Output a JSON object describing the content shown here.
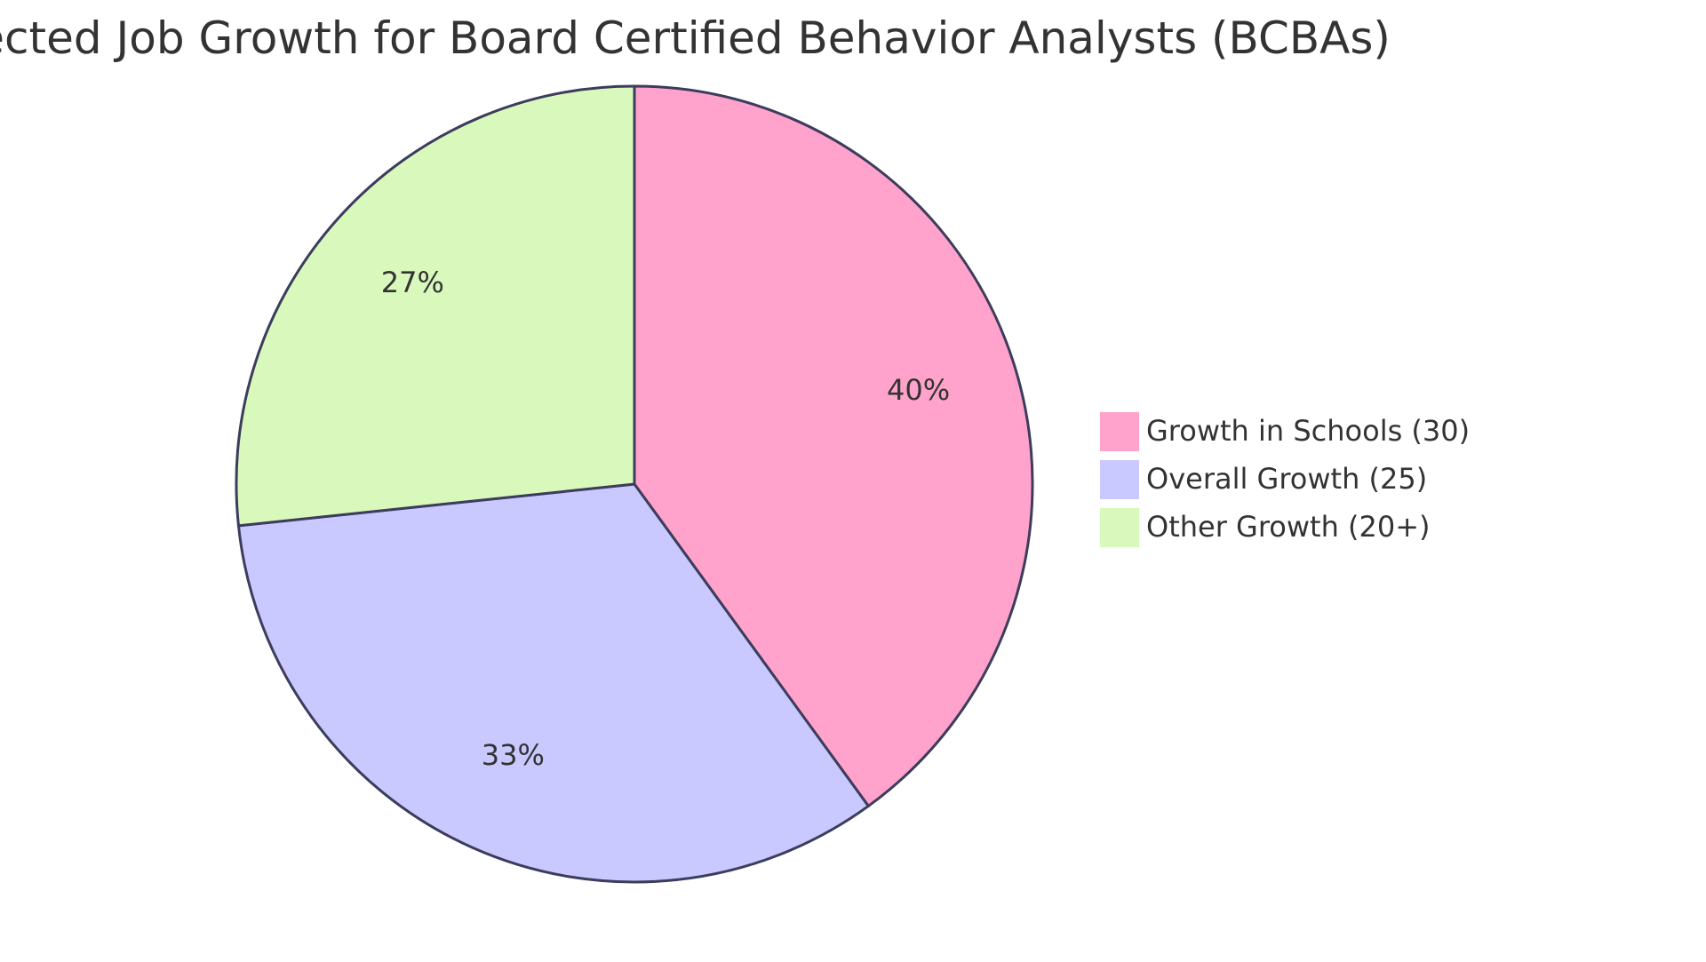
{
  "chart_data": {
    "type": "pie",
    "title": "Projected Job Growth for Board Certified Behavior Analysts (BCBAs)",
    "categories": [
      "Growth in Schools (30)",
      "Overall Growth (25)",
      "Other Growth (20+)"
    ],
    "values": [
      30,
      25,
      20
    ],
    "percent_labels": [
      "40%",
      "33%",
      "27%"
    ],
    "colors": [
      "#ffa3cc",
      "#c9c9ff",
      "#d9f9bc"
    ],
    "stroke_color": "#3c3c5c",
    "legend_position": "right"
  }
}
